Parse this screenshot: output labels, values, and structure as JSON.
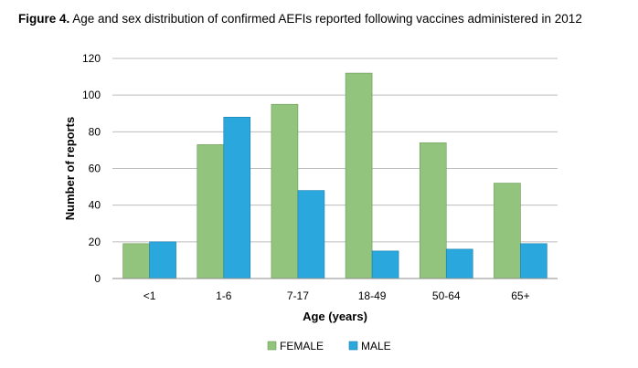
{
  "figure": {
    "label": "Figure 4.",
    "caption": " Age and sex distribution of confirmed AEFIs reported following vaccines administered in 2012"
  },
  "chart_data": {
    "type": "bar",
    "title": "Figure 4. Age and sex distribution of confirmed AEFIs reported following vaccines administered in 2012",
    "xlabel": "Age (years)",
    "ylabel": "Number of reports",
    "ylim": [
      0,
      120
    ],
    "yticks": [
      0,
      20,
      40,
      60,
      80,
      100,
      120
    ],
    "grid": true,
    "legend_position": "bottom",
    "categories": [
      "<1",
      "1-6",
      "7-17",
      "18-49",
      "50-64",
      "65+"
    ],
    "series": [
      {
        "name": "FEMALE",
        "color": "#92c47d",
        "stroke": "#6a9a55",
        "values": [
          19,
          73,
          95,
          112,
          74,
          52
        ]
      },
      {
        "name": "MALE",
        "color": "#2aa7dc",
        "stroke": "#1a7fae",
        "values": [
          20,
          88,
          48,
          15,
          16,
          19
        ]
      }
    ]
  }
}
